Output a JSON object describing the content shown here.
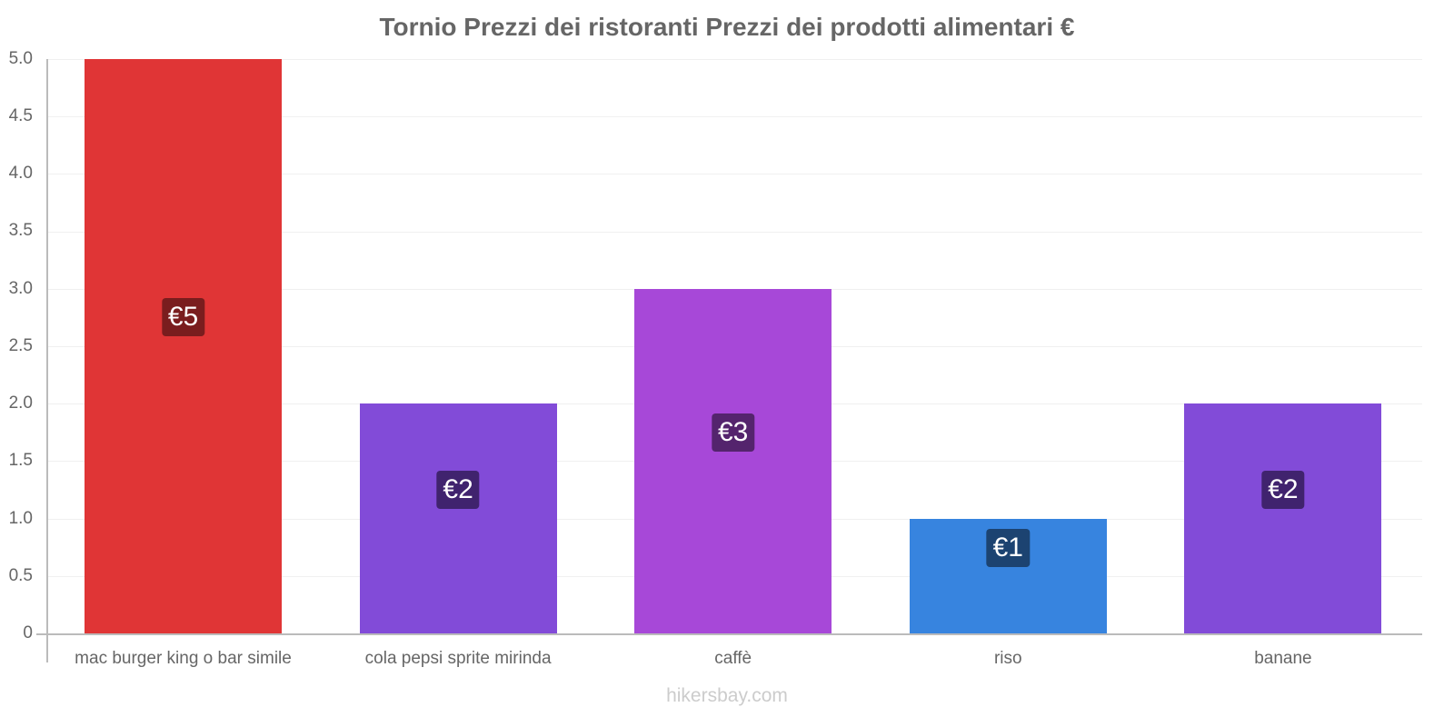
{
  "chart_data": {
    "type": "bar",
    "title": "Tornio Prezzi dei ristoranti Prezzi dei prodotti alimentari €",
    "xlabel": "",
    "ylabel": "",
    "ylim": [
      0,
      5
    ],
    "yticks": [
      "0",
      "0.5",
      "1.0",
      "1.5",
      "2.0",
      "2.5",
      "3.0",
      "3.5",
      "4.0",
      "4.5",
      "5.0"
    ],
    "grid": true,
    "legend": "none",
    "categories": [
      "mac burger king o bar simile",
      "cola pepsi sprite mirinda",
      "caffè",
      "riso",
      "banane"
    ],
    "values": [
      5,
      2,
      3,
      1,
      2
    ],
    "data_labels": [
      "€5",
      "€2",
      "€3",
      "€1",
      "€2"
    ],
    "bar_colors": [
      "#e03536",
      "#824bd8",
      "#a748d8",
      "#3784df",
      "#824bd8"
    ],
    "label_bg_colors": [
      "#7a1d1e",
      "#40236e",
      "#54246d",
      "#1c4371",
      "#40236e"
    ]
  },
  "watermark": "hikersbay.com"
}
